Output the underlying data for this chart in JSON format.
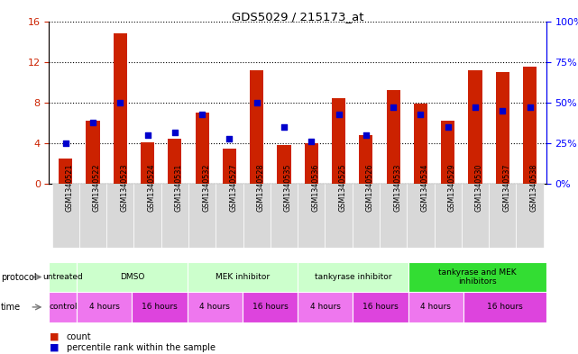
{
  "title": "GDS5029 / 215173_at",
  "samples": [
    "GSM1340521",
    "GSM1340522",
    "GSM1340523",
    "GSM1340524",
    "GSM1340531",
    "GSM1340532",
    "GSM1340527",
    "GSM1340528",
    "GSM1340535",
    "GSM1340536",
    "GSM1340525",
    "GSM1340526",
    "GSM1340533",
    "GSM1340534",
    "GSM1340529",
    "GSM1340530",
    "GSM1340537",
    "GSM1340538"
  ],
  "counts": [
    2.5,
    6.2,
    14.8,
    4.1,
    4.5,
    7.0,
    3.5,
    11.2,
    3.8,
    4.0,
    8.4,
    4.8,
    9.2,
    7.9,
    6.2,
    11.2,
    11.0,
    11.5
  ],
  "percentiles": [
    25,
    38,
    50,
    30,
    32,
    43,
    28,
    50,
    35,
    26,
    43,
    30,
    47,
    43,
    35,
    47,
    45,
    47
  ],
  "ylim_left": [
    0,
    16
  ],
  "ylim_right": [
    0,
    100
  ],
  "yticks_left": [
    0,
    4,
    8,
    12,
    16
  ],
  "yticks_right": [
    0,
    25,
    50,
    75,
    100
  ],
  "bar_color": "#cc2200",
  "dot_color": "#0000cc",
  "xtick_bg": "#d8d8d8",
  "protocol_row": [
    {
      "label": "untreated",
      "start": 0,
      "end": 1,
      "color": "#ccffcc"
    },
    {
      "label": "DMSO",
      "start": 1,
      "end": 5,
      "color": "#ccffcc"
    },
    {
      "label": "MEK inhibitor",
      "start": 5,
      "end": 9,
      "color": "#ccffcc"
    },
    {
      "label": "tankyrase inhibitor",
      "start": 9,
      "end": 13,
      "color": "#ccffcc"
    },
    {
      "label": "tankyrase and MEK\ninhibitors",
      "start": 13,
      "end": 18,
      "color": "#33dd33"
    }
  ],
  "time_row": [
    {
      "label": "control",
      "start": 0,
      "end": 1,
      "color": "#ee77ee"
    },
    {
      "label": "4 hours",
      "start": 1,
      "end": 3,
      "color": "#ee77ee"
    },
    {
      "label": "16 hours",
      "start": 3,
      "end": 5,
      "color": "#dd44dd"
    },
    {
      "label": "4 hours",
      "start": 5,
      "end": 7,
      "color": "#ee77ee"
    },
    {
      "label": "16 hours",
      "start": 7,
      "end": 9,
      "color": "#dd44dd"
    },
    {
      "label": "4 hours",
      "start": 9,
      "end": 11,
      "color": "#ee77ee"
    },
    {
      "label": "16 hours",
      "start": 11,
      "end": 13,
      "color": "#dd44dd"
    },
    {
      "label": "4 hours",
      "start": 13,
      "end": 15,
      "color": "#ee77ee"
    },
    {
      "label": "16 hours",
      "start": 15,
      "end": 18,
      "color": "#dd44dd"
    }
  ],
  "legend_count_color": "#cc2200",
  "legend_pct_color": "#0000cc",
  "bar_width": 0.5
}
